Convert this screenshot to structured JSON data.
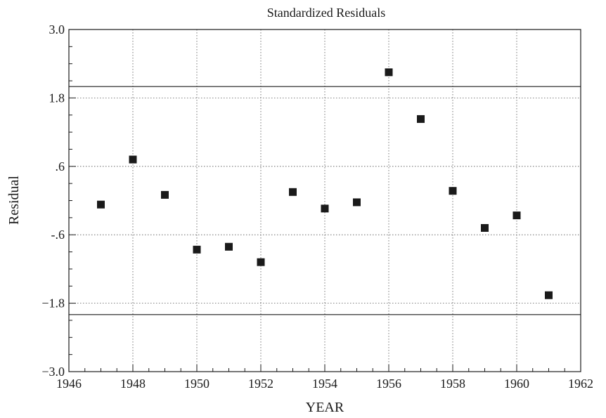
{
  "chart_data": {
    "type": "scatter",
    "title": "Standardized Residuals",
    "xlabel": "YEAR",
    "ylabel": "Residual",
    "xlim": [
      1946,
      1962
    ],
    "ylim": [
      -3.0,
      3.0
    ],
    "x_ticks": [
      1946,
      1948,
      1950,
      1952,
      1954,
      1956,
      1958,
      1960,
      1962
    ],
    "x_tick_labels": [
      "1946",
      "1948",
      "1950",
      "1952",
      "1954",
      "1956",
      "1958",
      "1960",
      "1962"
    ],
    "y_ticks": [
      -3.0,
      -1.8,
      -0.6,
      0.6,
      1.8,
      3.0
    ],
    "y_tick_labels": [
      "−3.0",
      "−1.8",
      "-.6",
      ".6",
      "1.8",
      "3.0"
    ],
    "grid": true,
    "reference_lines": [
      2.0,
      -2.0
    ],
    "series": [
      {
        "marker": "square",
        "color": "#1a1a1a",
        "x": [
          1947,
          1948,
          1949,
          1950,
          1951,
          1952,
          1953,
          1954,
          1955,
          1956,
          1957,
          1958,
          1959,
          1960,
          1961
        ],
        "y": [
          -0.07,
          0.72,
          0.1,
          -0.86,
          -0.81,
          -1.08,
          0.15,
          -0.14,
          -0.03,
          2.25,
          1.43,
          0.17,
          -0.48,
          -0.26,
          -1.66
        ]
      }
    ]
  }
}
